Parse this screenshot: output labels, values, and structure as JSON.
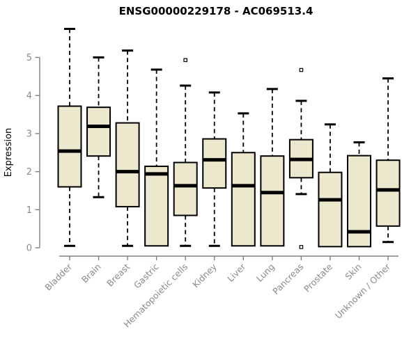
{
  "chart_data": {
    "type": "boxplot",
    "title": "ENSG00000229178 - AC069513.4",
    "ylabel": "Expression",
    "xlabel": "",
    "ylim": [
      0,
      5
    ],
    "yticks": [
      0,
      1,
      2,
      3,
      4,
      5
    ],
    "grid": false,
    "legend": "none",
    "categories": [
      "Bladder",
      "Brain",
      "Breast",
      "Gastric",
      "Hematopoietic cells",
      "Kidney",
      "Liver",
      "Lung",
      "Pancreas",
      "Prostate",
      "Skin",
      "Unknown / Other"
    ],
    "series": [
      {
        "name": "Bladder",
        "whisker_low": 0.05,
        "q1": 1.6,
        "median": 2.54,
        "q3": 3.72,
        "whisker_high": 5.75,
        "outliers": []
      },
      {
        "name": "Brain",
        "whisker_low": 1.33,
        "q1": 2.41,
        "median": 3.19,
        "q3": 3.69,
        "whisker_high": 5.0,
        "outliers": []
      },
      {
        "name": "Breast",
        "whisker_low": 0.05,
        "q1": 1.08,
        "median": 2.0,
        "q3": 3.28,
        "whisker_high": 5.18,
        "outliers": []
      },
      {
        "name": "Gastric",
        "whisker_low": 0.05,
        "q1": 0.05,
        "median": 1.94,
        "q3": 2.14,
        "whisker_high": 4.68,
        "outliers": []
      },
      {
        "name": "Hematopoietic cells",
        "whisker_low": 0.05,
        "q1": 0.85,
        "median": 1.63,
        "q3": 2.24,
        "whisker_high": 4.26,
        "outliers": [
          4.93
        ]
      },
      {
        "name": "Kidney",
        "whisker_low": 0.05,
        "q1": 1.57,
        "median": 2.31,
        "q3": 2.86,
        "whisker_high": 4.08,
        "outliers": []
      },
      {
        "name": "Liver",
        "whisker_low": 0.05,
        "q1": 0.05,
        "median": 1.63,
        "q3": 2.5,
        "whisker_high": 3.53,
        "outliers": []
      },
      {
        "name": "Lung",
        "whisker_low": 0.05,
        "q1": 0.05,
        "median": 1.45,
        "q3": 2.41,
        "whisker_high": 4.17,
        "outliers": []
      },
      {
        "name": "Pancreas",
        "whisker_low": 1.41,
        "q1": 1.84,
        "median": 2.32,
        "q3": 2.84,
        "whisker_high": 3.86,
        "outliers": [
          4.67,
          0.02
        ]
      },
      {
        "name": "Prostate",
        "whisker_low": 0.03,
        "q1": 0.03,
        "median": 1.26,
        "q3": 1.98,
        "whisker_high": 3.24,
        "outliers": []
      },
      {
        "name": "Skin",
        "whisker_low": 0.03,
        "q1": 0.03,
        "median": 0.42,
        "q3": 2.42,
        "whisker_high": 2.77,
        "outliers": []
      },
      {
        "name": "Unknown / Other",
        "whisker_low": 0.15,
        "q1": 0.57,
        "median": 1.52,
        "q3": 2.3,
        "whisker_high": 4.45,
        "outliers": []
      }
    ]
  },
  "colors": {
    "box_fill": "#ece8ce",
    "box_stroke": "#000000",
    "median": "#000000",
    "whisker": "#000000",
    "axis": "#808080",
    "tick_label": "#8a8a8a",
    "title": "#000000",
    "background": "#ffffff",
    "outlier_fill": "#ffffff"
  }
}
